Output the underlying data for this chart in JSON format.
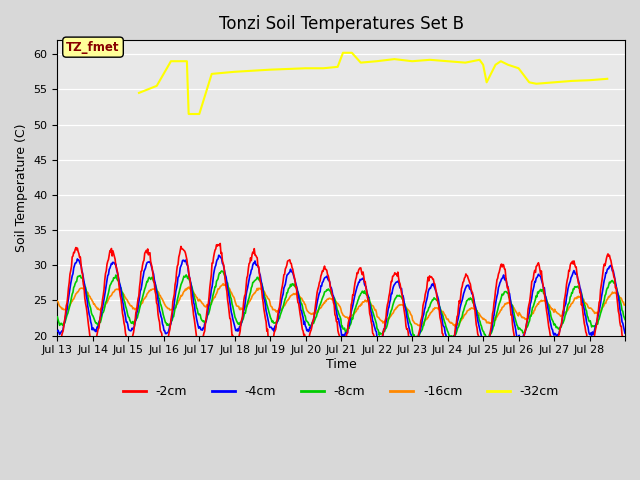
{
  "title": "Tonzi Soil Temperatures Set B",
  "xlabel": "Time",
  "ylabel": "Soil Temperature (C)",
  "ylim": [
    20,
    62
  ],
  "xlim": [
    0,
    16
  ],
  "yticks": [
    20,
    25,
    30,
    35,
    40,
    45,
    50,
    55,
    60
  ],
  "xtick_positions": [
    0,
    1,
    2,
    3,
    4,
    5,
    6,
    7,
    8,
    9,
    10,
    11,
    12,
    13,
    14,
    15,
    16
  ],
  "xtick_labels": [
    "Jul 13",
    "Jul 14",
    "Jul 15",
    "Jul 16",
    "Jul 17",
    "Jul 18",
    "Jul 19",
    "Jul 20",
    "Jul 21",
    "Jul 22",
    "Jul 23",
    "Jul 24",
    "Jul 25",
    "Jul 26",
    "Jul 27",
    "Jul 28",
    ""
  ],
  "fig_bg_color": "#d8d8d8",
  "plot_bg_color": "#e8e8e8",
  "legend_label": "TZ_fmet",
  "legend_box_facecolor": "#ffff99",
  "legend_text_color": "#880000",
  "series_colors": {
    "-2cm": "#ff0000",
    "-4cm": "#0000ff",
    "-8cm": "#00cc00",
    "-16cm": "#ff8800",
    "-32cm": "#ffff00"
  },
  "series_linewidth": 1.2,
  "n_days": 16,
  "n_per_day": 48,
  "day_amps_2cm": [
    7.0,
    6.5,
    6.5,
    7.0,
    7.0,
    6.5,
    5.5,
    5.0,
    5.5,
    5.5,
    5.5,
    5.5,
    6.5,
    6.0,
    6.0,
    6.5
  ],
  "day_bases_2cm": [
    25.5,
    25.5,
    25.5,
    25.5,
    26.0,
    25.5,
    25.0,
    24.5,
    24.0,
    23.5,
    23.0,
    23.0,
    23.5,
    24.0,
    24.5,
    25.0
  ],
  "tzfmet_pts": [
    [
      2.3,
      54.5
    ],
    [
      2.8,
      55.5
    ],
    [
      3.2,
      59.0
    ],
    [
      3.65,
      59.0
    ],
    [
      3.7,
      51.5
    ],
    [
      3.75,
      51.5
    ],
    [
      4.0,
      51.5
    ],
    [
      4.35,
      57.2
    ],
    [
      5.0,
      57.5
    ],
    [
      6.0,
      57.8
    ],
    [
      7.0,
      58.0
    ],
    [
      7.5,
      58.0
    ],
    [
      7.9,
      58.2
    ],
    [
      8.05,
      60.2
    ],
    [
      8.3,
      60.2
    ],
    [
      8.55,
      58.8
    ],
    [
      9.0,
      59.0
    ],
    [
      9.5,
      59.3
    ],
    [
      10.0,
      59.0
    ],
    [
      10.5,
      59.2
    ],
    [
      11.0,
      59.0
    ],
    [
      11.5,
      58.8
    ],
    [
      11.9,
      59.2
    ],
    [
      12.0,
      58.5
    ],
    [
      12.1,
      56.0
    ],
    [
      12.35,
      58.5
    ],
    [
      12.5,
      59.0
    ],
    [
      12.7,
      58.5
    ],
    [
      13.0,
      58.0
    ],
    [
      13.3,
      56.0
    ],
    [
      13.5,
      55.8
    ],
    [
      14.0,
      56.0
    ],
    [
      14.5,
      56.2
    ],
    [
      15.0,
      56.3
    ],
    [
      15.5,
      56.5
    ]
  ]
}
